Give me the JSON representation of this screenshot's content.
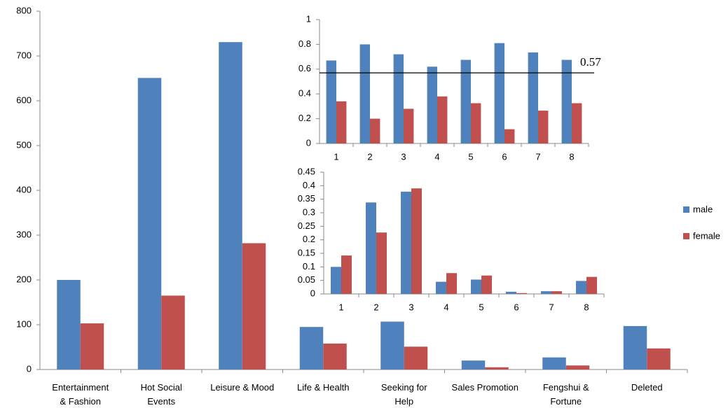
{
  "chart_data": [
    {
      "type": "bar",
      "categories": [
        "Entertainment\n& Fashion",
        "Hot Social\nEvents",
        "Leisure & Mood",
        "Life & Health",
        "Seeking for\nHelp",
        "Sales Promotion",
        "Fengshui &\nFortune",
        "Deleted"
      ],
      "series": [
        {
          "name": "male",
          "color": "#4f81bd",
          "values": [
            200,
            651,
            731,
            95,
            107,
            20,
            27,
            97
          ]
        },
        {
          "name": "female",
          "color": "#c0504d",
          "values": [
            103,
            165,
            282,
            58,
            51,
            5,
            9,
            47
          ]
        }
      ],
      "ylim": [
        0,
        800
      ],
      "yticks": [
        0,
        100,
        200,
        300,
        400,
        500,
        600,
        700,
        800
      ],
      "legend": "right"
    },
    {
      "type": "bar",
      "categories": [
        "1",
        "2",
        "3",
        "4",
        "5",
        "6",
        "7",
        "8"
      ],
      "series": [
        {
          "color": "#4f81bd",
          "values": [
            0.67,
            0.8,
            0.72,
            0.62,
            0.675,
            0.81,
            0.735,
            0.675
          ]
        },
        {
          "color": "#c0504d",
          "values": [
            0.34,
            0.2,
            0.28,
            0.38,
            0.325,
            0.115,
            0.265,
            0.325
          ]
        }
      ],
      "ylim": [
        0,
        1
      ],
      "yticks": [
        0,
        0.2,
        0.4,
        0.6,
        0.8,
        1
      ],
      "reference_line": {
        "value": 0.57,
        "label": "0.57"
      }
    },
    {
      "type": "bar",
      "categories": [
        "1",
        "2",
        "3",
        "4",
        "5",
        "6",
        "7",
        "8"
      ],
      "series": [
        {
          "color": "#4f81bd",
          "values": [
            0.1,
            0.338,
            0.378,
            0.045,
            0.053,
            0.008,
            0.01,
            0.048
          ]
        },
        {
          "color": "#c0504d",
          "values": [
            0.142,
            0.227,
            0.39,
            0.077,
            0.068,
            0.003,
            0.01,
            0.063
          ]
        }
      ],
      "ylim": [
        0,
        0.45
      ],
      "yticks": [
        0,
        0.05,
        0.1,
        0.15,
        0.2,
        0.25,
        0.3,
        0.35,
        0.4,
        0.45
      ]
    }
  ]
}
